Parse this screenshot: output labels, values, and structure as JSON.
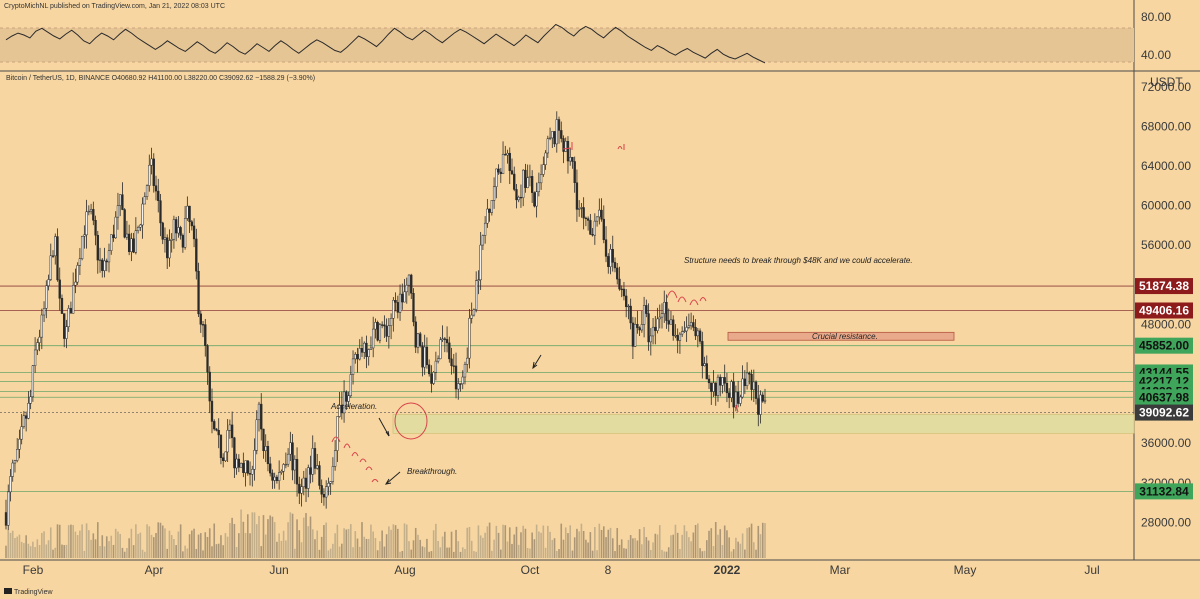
{
  "header": {
    "publisher": "CryptoMichNL published on TradingView.com, Jan 21, 2022 08:03 UTC",
    "symbol_info": "Bitcoin / TetherUS, 1D, BINANCE  O40680.92 H41100.00 L38220.00 C39092.62 −1588.29 (−3.90%)"
  },
  "footer": {
    "brand": "TradingView"
  },
  "colors": {
    "background": "#f7d6a1",
    "candle": "#2a2a2a",
    "drawing_red": "#d9434a",
    "support_zone": "#e3dca0",
    "resistance_zone": "#e9a98b",
    "maroon_label": "#8e1b1b",
    "green_label": "#3ea55a",
    "gray_label": "#3b3b3b"
  },
  "chart_data": [
    {
      "type": "line",
      "name": "RSI panel",
      "y_ticks": [
        "80.00",
        "40.00"
      ],
      "band": [
        30,
        70
      ],
      "values": [
        56,
        60,
        63,
        61,
        58,
        65,
        68,
        64,
        60,
        57,
        62,
        66,
        61,
        55,
        52,
        58,
        63,
        60,
        56,
        62,
        67,
        63,
        58,
        54,
        50,
        46,
        50,
        55,
        51,
        47,
        44,
        49,
        54,
        50,
        45,
        42,
        47,
        53,
        49,
        44,
        41,
        46,
        52,
        48,
        44,
        50,
        55,
        51,
        46,
        42,
        47,
        52,
        56,
        53,
        49,
        45,
        43,
        48,
        54,
        60,
        57,
        53,
        49,
        55,
        62,
        68,
        64,
        59,
        56,
        61,
        66,
        62,
        57,
        53,
        58,
        63,
        67,
        64,
        60,
        56,
        52,
        57,
        62,
        58,
        54,
        50,
        55,
        61,
        57,
        53,
        60,
        66,
        72,
        69,
        64,
        60,
        66,
        70,
        67,
        62,
        58,
        64,
        69,
        65,
        60,
        56,
        52,
        48,
        45,
        50,
        47,
        43,
        40,
        44,
        47,
        43,
        40,
        37,
        42,
        46,
        41,
        38,
        36,
        39,
        42,
        38,
        35,
        32
      ]
    },
    {
      "type": "candlestick",
      "name": "Bitcoin / TetherUS",
      "x_ticks": [
        "Feb",
        "Apr",
        "Jun",
        "Aug",
        "Oct",
        "8",
        "2022",
        "Mar",
        "May",
        "Jul"
      ],
      "y_ticks": [
        "72000.00",
        "68000.00",
        "64000.00",
        "60000.00",
        "56000.00",
        "48000.00",
        "36000.00",
        "32000.00",
        "28000.00"
      ],
      "y_axis_label": "USDT",
      "ylim": [
        24200,
        73500
      ],
      "close_path": [
        29000,
        33000,
        34500,
        38000,
        40000,
        46000,
        48000,
        52000,
        57000,
        49000,
        47000,
        51000,
        55000,
        58000,
        59000,
        56000,
        53000,
        55000,
        58000,
        60000,
        57000,
        55000,
        58000,
        61000,
        64000,
        61000,
        57000,
        55000,
        58000,
        56000,
        59000,
        57000,
        50000,
        46000,
        38000,
        36000,
        35000,
        38000,
        34000,
        35000,
        33000,
        34000,
        39000,
        35000,
        33000,
        32000,
        34000,
        36000,
        33000,
        31000,
        33000,
        35000,
        32000,
        30000,
        33000,
        38000,
        41000,
        42000,
        44000,
        46000,
        46000,
        47000,
        48000,
        47000,
        49000,
        50000,
        51000,
        52000,
        47000,
        45000,
        44000,
        42000,
        47000,
        46000,
        44000,
        41000,
        43000,
        48000,
        52000,
        56000,
        60000,
        62000,
        64000,
        66000,
        62000,
        61000,
        63000,
        62000,
        60000,
        63000,
        66000,
        67000,
        68000,
        65000,
        64000,
        60000,
        58000,
        57000,
        60000,
        57000,
        55000,
        54000,
        51000,
        50000,
        47000,
        48000,
        49000,
        46000,
        48000,
        50000,
        49000,
        47000,
        46000,
        48000,
        47000,
        46000,
        43000,
        42000,
        41000,
        43000,
        42000,
        40000,
        41000,
        42000,
        41500,
        40000,
        39092
      ],
      "price_labels": [
        {
          "value": "51874.38",
          "kind": "maroon"
        },
        {
          "value": "49406.16",
          "kind": "maroon"
        },
        {
          "value": "45852.00",
          "kind": "green"
        },
        {
          "value": "43144.55",
          "kind": "green"
        },
        {
          "value": "42217.12",
          "kind": "green"
        },
        {
          "value": "41222.53",
          "kind": "green"
        },
        {
          "value": "40637.98",
          "kind": "green"
        },
        {
          "value": "39092.62",
          "kind": "gray"
        },
        {
          "value": "31132.84",
          "kind": "green"
        }
      ],
      "horizontal_levels": [
        51874.38,
        49406.16,
        45852.0,
        43144.55,
        42217.12,
        41222.53,
        40637.98,
        31132.84
      ],
      "current_price_line": 39092.62,
      "support_zone": [
        37000,
        38900
      ],
      "resistance_zone": [
        46400,
        47200
      ],
      "annotations": [
        {
          "text": "Structure needs to break through $48K and we could accelerate."
        },
        {
          "text": "Crucial resistance."
        },
        {
          "text": "Acceleration."
        },
        {
          "text": "Breakthrough."
        }
      ]
    }
  ]
}
